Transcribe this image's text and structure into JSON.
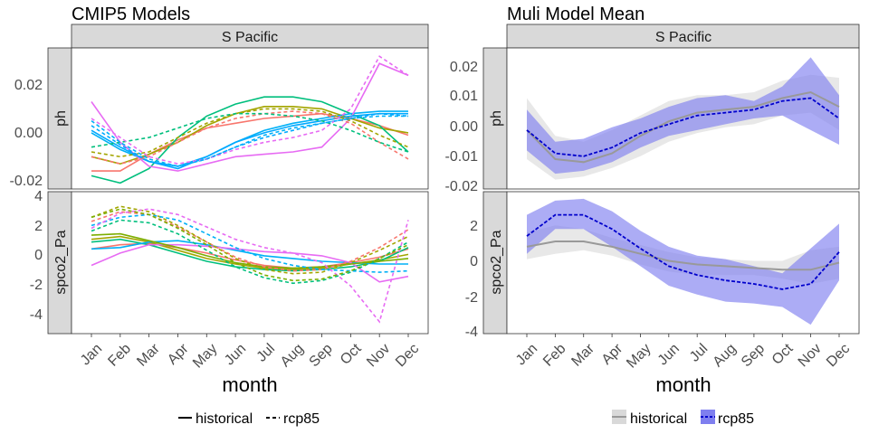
{
  "left": {
    "title": "CMIP5 Models",
    "strip": "S Pacific",
    "xlabel": "month",
    "rows": [
      {
        "strip": "ph",
        "yticks": [
          "0.02",
          "0.00",
          "-0.02"
        ]
      },
      {
        "strip": "spco2_Pa",
        "yticks": [
          "4",
          "2",
          "0",
          "-2",
          "-4"
        ]
      }
    ],
    "legend": {
      "solid": "historical",
      "dashed": "rcp85"
    }
  },
  "right": {
    "title": "Muli Model Mean",
    "strip": "S Pacific",
    "xlabel": "month",
    "rows": [
      {
        "strip": "ph",
        "yticks": [
          "0.02",
          "0.01",
          "0.00",
          "-0.01",
          "-0.02"
        ]
      },
      {
        "strip": "spco2_Pa",
        "yticks": [
          "2",
          "0",
          "-2",
          "-4"
        ]
      }
    ],
    "legend": {
      "historical": "historical",
      "rcp85": "rcp85"
    }
  },
  "months": [
    "Jan",
    "Feb",
    "Mar",
    "Apr",
    "May",
    "Jun",
    "Jul",
    "Aug",
    "Sep",
    "Oct",
    "Nov",
    "Dec"
  ],
  "colors": {
    "models": [
      "#F8766D",
      "#A3A500",
      "#00BF7D",
      "#00B0F6",
      "#E76BF3",
      "#7CAE00",
      "#00A9FF",
      "#C77CFF"
    ],
    "hist_ribbon": "#d9d9d9",
    "hist_line": "#999999",
    "rcp_ribbon": "#7f7fef",
    "rcp_line": "#0000cc"
  },
  "chart_data": [
    {
      "type": "line",
      "title": "CMIP5 Models",
      "facet": "S Pacific",
      "panel": "ph",
      "xlabel": "month",
      "ylabel": "ph",
      "ylim": [
        -0.022,
        0.034
      ],
      "x": [
        "Jan",
        "Feb",
        "Mar",
        "Apr",
        "May",
        "Jun",
        "Jul",
        "Aug",
        "Sep",
        "Oct",
        "Nov",
        "Dec"
      ],
      "series": [
        {
          "scenario": "historical",
          "color": "#F8766D",
          "values": [
            -0.016,
            -0.016,
            -0.009,
            -0.003,
            0.002,
            0.004,
            0.006,
            0.007,
            0.008,
            0.006,
            0.003,
            -0.001
          ]
        },
        {
          "scenario": "historical",
          "color": "#A3A500",
          "values": [
            -0.01,
            -0.013,
            -0.009,
            -0.004,
            0.003,
            0.008,
            0.011,
            0.011,
            0.01,
            0.006,
            0.002,
            0.0
          ]
        },
        {
          "scenario": "historical",
          "color": "#00BF7D",
          "values": [
            -0.018,
            -0.021,
            -0.015,
            -0.002,
            0.007,
            0.012,
            0.015,
            0.015,
            0.013,
            0.008,
            0.003,
            -0.008
          ]
        },
        {
          "scenario": "historical",
          "color": "#00B0F6",
          "values": [
            0.0,
            -0.007,
            -0.012,
            -0.014,
            -0.01,
            -0.004,
            0.001,
            0.004,
            0.006,
            0.008,
            0.009,
            0.009
          ]
        },
        {
          "scenario": "historical",
          "color": "#E76BF3",
          "values": [
            0.013,
            -0.004,
            -0.014,
            -0.016,
            -0.013,
            -0.01,
            -0.009,
            -0.008,
            -0.006,
            0.006,
            0.029,
            0.024
          ]
        },
        {
          "scenario": "historical",
          "color": "#00A9FF",
          "values": [
            0.001,
            -0.006,
            -0.012,
            -0.015,
            -0.01,
            -0.004,
            0.0,
            0.003,
            0.005,
            0.007,
            0.008,
            0.008
          ]
        },
        {
          "scenario": "rcp85",
          "color": "#F8766D",
          "values": [
            -0.01,
            -0.013,
            -0.01,
            -0.004,
            0.002,
            0.006,
            0.008,
            0.009,
            0.008,
            0.004,
            -0.004,
            -0.011
          ]
        },
        {
          "scenario": "rcp85",
          "color": "#A3A500",
          "values": [
            -0.008,
            -0.01,
            -0.008,
            -0.002,
            0.004,
            0.008,
            0.01,
            0.01,
            0.009,
            0.005,
            -0.001,
            -0.006
          ]
        },
        {
          "scenario": "rcp85",
          "color": "#00BF7D",
          "values": [
            -0.006,
            -0.004,
            -0.002,
            0.002,
            0.006,
            0.008,
            0.008,
            0.007,
            0.005,
            0.001,
            -0.004,
            -0.008
          ]
        },
        {
          "scenario": "rcp85",
          "color": "#00B0F6",
          "values": [
            0.005,
            -0.004,
            -0.011,
            -0.014,
            -0.011,
            -0.006,
            -0.001,
            0.002,
            0.004,
            0.006,
            0.007,
            0.007
          ]
        },
        {
          "scenario": "rcp85",
          "color": "#E76BF3",
          "values": [
            0.006,
            -0.002,
            -0.01,
            -0.013,
            -0.011,
            -0.007,
            -0.004,
            -0.002,
            0.001,
            0.01,
            0.032,
            0.024
          ]
        },
        {
          "scenario": "rcp85",
          "color": "#00A9FF",
          "values": [
            0.003,
            -0.005,
            -0.012,
            -0.014,
            -0.011,
            -0.006,
            -0.002,
            0.001,
            0.004,
            0.006,
            0.008,
            0.007
          ]
        }
      ]
    },
    {
      "type": "line",
      "title": "CMIP5 Models",
      "facet": "S Pacific",
      "panel": "spco2_Pa",
      "xlabel": "month",
      "ylabel": "spco2_Pa",
      "ylim": [
        -5.4,
        4.4
      ],
      "x": [
        "Jan",
        "Feb",
        "Mar",
        "Apr",
        "May",
        "Jun",
        "Jul",
        "Aug",
        "Sep",
        "Oct",
        "Nov",
        "Dec"
      ],
      "series": [
        {
          "scenario": "historical",
          "color": "#F8766D",
          "values": [
            0.5,
            0.8,
            0.9,
            0.6,
            0.2,
            -0.3,
            -0.7,
            -0.9,
            -0.8,
            -0.5,
            -0.1,
            0.5
          ]
        },
        {
          "scenario": "historical",
          "color": "#A3A500",
          "values": [
            1.2,
            1.4,
            1.0,
            0.4,
            -0.2,
            -0.6,
            -0.9,
            -1.0,
            -0.9,
            -0.6,
            -0.3,
            0.1
          ]
        },
        {
          "scenario": "historical",
          "color": "#00BF7D",
          "values": [
            1.0,
            1.2,
            0.8,
            0.2,
            -0.4,
            -0.8,
            -1.0,
            -1.1,
            -1.0,
            -0.8,
            -0.4,
            0.6
          ]
        },
        {
          "scenario": "historical",
          "color": "#00B0F6",
          "values": [
            0.5,
            0.6,
            1.0,
            1.1,
            0.8,
            0.4,
            0.0,
            -0.2,
            -0.4,
            -0.5,
            -0.6,
            -0.6
          ]
        },
        {
          "scenario": "historical",
          "color": "#E76BF3",
          "values": [
            -0.7,
            0.2,
            0.8,
            0.8,
            0.7,
            0.5,
            0.3,
            0.2,
            0.0,
            -0.5,
            -1.9,
            -1.5
          ]
        },
        {
          "scenario": "historical",
          "color": "#7CAE00",
          "values": [
            1.5,
            1.6,
            1.1,
            0.6,
            0.0,
            -0.5,
            -0.8,
            -0.9,
            -0.8,
            -0.6,
            -0.4,
            -0.2
          ]
        },
        {
          "scenario": "rcp85",
          "color": "#F8766D",
          "values": [
            2.5,
            3.2,
            3.0,
            2.1,
            1.0,
            -0.1,
            -0.8,
            -1.1,
            -1.0,
            -0.4,
            0.6,
            1.9
          ]
        },
        {
          "scenario": "rcp85",
          "color": "#A3A500",
          "values": [
            2.8,
            3.6,
            3.2,
            2.2,
            1.0,
            -0.2,
            -1.0,
            -1.3,
            -1.2,
            -0.5,
            0.4,
            1.4
          ]
        },
        {
          "scenario": "rcp85",
          "color": "#00BF7D",
          "values": [
            1.8,
            2.6,
            2.4,
            1.6,
            0.4,
            -0.8,
            -1.6,
            -2.0,
            -1.8,
            -1.2,
            -0.2,
            1.0
          ]
        },
        {
          "scenario": "rcp85",
          "color": "#00B0F6",
          "values": [
            2.2,
            2.8,
            3.0,
            2.6,
            1.6,
            0.6,
            -0.2,
            -0.7,
            -1.0,
            -1.1,
            -1.2,
            -1.1
          ]
        },
        {
          "scenario": "rcp85",
          "color": "#E76BF3",
          "values": [
            2.0,
            3.1,
            3.4,
            3.0,
            2.1,
            1.2,
            0.6,
            0.2,
            -0.5,
            -2.2,
            -4.8,
            2.6
          ]
        },
        {
          "scenario": "rcp85",
          "color": "#7CAE00",
          "values": [
            2.8,
            3.4,
            3.0,
            2.0,
            0.8,
            -0.5,
            -1.4,
            -1.8,
            -1.7,
            -1.1,
            -0.2,
            0.8
          ]
        }
      ]
    },
    {
      "type": "line",
      "title": "Muli Model Mean",
      "facet": "S Pacific",
      "panel": "ph",
      "xlabel": "month",
      "ylabel": "ph",
      "ylim": [
        -0.021,
        0.025
      ],
      "x": [
        "Jan",
        "Feb",
        "Mar",
        "Apr",
        "May",
        "Jun",
        "Jul",
        "Aug",
        "Sep",
        "Oct",
        "Nov",
        "Dec"
      ],
      "series": [
        {
          "name": "historical",
          "mean": [
            -0.002,
            -0.012,
            -0.013,
            -0.01,
            -0.004,
            0.001,
            0.004,
            0.005,
            0.006,
            0.009,
            0.011,
            0.006
          ],
          "lower": [
            -0.012,
            -0.019,
            -0.018,
            -0.015,
            -0.011,
            -0.006,
            -0.003,
            -0.001,
            0.0,
            0.003,
            0.004,
            -0.002
          ],
          "upper": [
            0.009,
            -0.004,
            -0.006,
            -0.002,
            0.003,
            0.008,
            0.01,
            0.01,
            0.011,
            0.015,
            0.017,
            0.016
          ]
        },
        {
          "name": "rcp85",
          "mean": [
            -0.002,
            -0.01,
            -0.011,
            -0.008,
            -0.003,
            0.0,
            0.003,
            0.004,
            0.005,
            0.008,
            0.009,
            0.002
          ],
          "lower": [
            -0.009,
            -0.017,
            -0.016,
            -0.013,
            -0.008,
            -0.004,
            -0.002,
            0.0,
            0.002,
            0.003,
            -0.002,
            -0.007
          ],
          "upper": [
            0.005,
            -0.006,
            -0.005,
            -0.001,
            0.002,
            0.006,
            0.009,
            0.01,
            0.008,
            0.013,
            0.023,
            0.01
          ]
        }
      ]
    },
    {
      "type": "line",
      "title": "Muli Model Mean",
      "facet": "S Pacific",
      "panel": "spco2_Pa",
      "xlabel": "month",
      "ylabel": "spco2_Pa",
      "ylim": [
        -4.1,
        3.5
      ],
      "x": [
        "Jan",
        "Feb",
        "Mar",
        "Apr",
        "May",
        "Jun",
        "Jul",
        "Aug",
        "Sep",
        "Oct",
        "Nov",
        "Dec"
      ],
      "series": [
        {
          "name": "historical",
          "mean": [
            0.6,
            0.9,
            0.9,
            0.6,
            0.2,
            -0.2,
            -0.4,
            -0.5,
            -0.6,
            -0.7,
            -0.7,
            -0.3
          ],
          "lower": [
            -0.1,
            0.2,
            0.4,
            0.1,
            -0.4,
            -0.8,
            -1.0,
            -1.0,
            -1.0,
            -1.2,
            -1.5,
            -1.2
          ],
          "upper": [
            1.4,
            1.8,
            1.6,
            1.1,
            0.7,
            0.3,
            0.0,
            -0.1,
            -0.2,
            -0.2,
            0.4,
            0.6
          ]
        },
        {
          "name": "rcp85",
          "mean": [
            1.2,
            2.4,
            2.4,
            1.6,
            0.5,
            -0.5,
            -1.0,
            -1.3,
            -1.5,
            -1.8,
            -1.5,
            0.3
          ],
          "lower": [
            0.2,
            1.6,
            1.6,
            0.6,
            -0.5,
            -1.6,
            -2.1,
            -2.5,
            -2.6,
            -2.8,
            -3.8,
            -1.3
          ],
          "upper": [
            2.4,
            3.2,
            3.3,
            2.6,
            1.5,
            0.6,
            0.1,
            -0.1,
            -0.5,
            -0.9,
            0.5,
            1.9
          ]
        }
      ]
    }
  ]
}
